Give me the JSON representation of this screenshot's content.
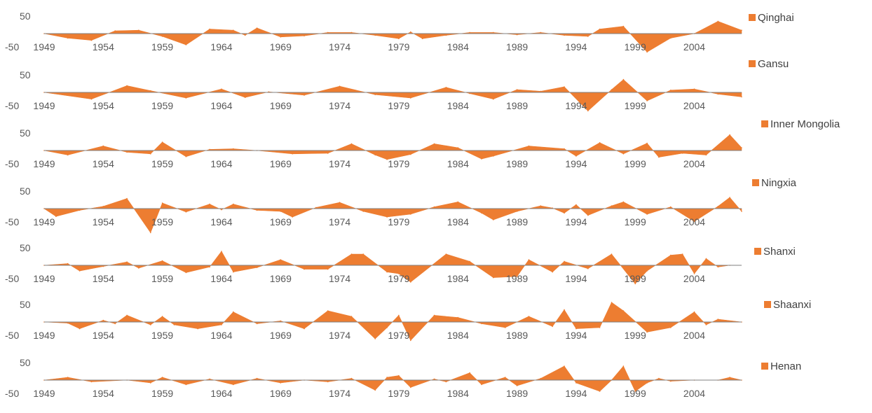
{
  "colors": {
    "series": "#ED7D31",
    "text": "#595959",
    "axis": "#7F7F7F"
  },
  "chart_data": {
    "type": "area",
    "ylim": [
      -50,
      50
    ],
    "yticks": [
      "50",
      "-50"
    ],
    "xticks": [
      "1949",
      "1954",
      "1959",
      "1964",
      "1969",
      "1974",
      "1979",
      "1984",
      "1989",
      "1994",
      "1999",
      "2004"
    ],
    "x_start": 1949,
    "x_end": 2008,
    "panels": [
      {
        "name": "Qinghai",
        "years": [
          1949,
          1951,
          1953,
          1955,
          1957,
          1959,
          1961,
          1963,
          1965,
          1966,
          1967,
          1969,
          1971,
          1973,
          1975,
          1977,
          1979,
          1980,
          1981,
          1983,
          1985,
          1987,
          1989,
          1991,
          1993,
          1995,
          1996,
          1998,
          2000,
          2002,
          2004,
          2006,
          2008
        ],
        "values": [
          0,
          -8,
          -12,
          5,
          6,
          -5,
          -20,
          8,
          6,
          -3,
          10,
          -6,
          -4,
          2,
          2,
          -3,
          -9,
          3,
          -9,
          -3,
          2,
          2,
          -2,
          2,
          -3,
          -5,
          8,
          13,
          -33,
          -8,
          0,
          22,
          6
        ]
      },
      {
        "name": "Gansu",
        "years": [
          1949,
          1953,
          1956,
          1958,
          1961,
          1964,
          1966,
          1968,
          1971,
          1974,
          1977,
          1980,
          1983,
          1985,
          1987,
          1989,
          1991,
          1993,
          1995,
          1997,
          1998,
          2000,
          2002,
          2004,
          2006,
          2008
        ],
        "values": [
          0,
          -12,
          12,
          3,
          -10,
          6,
          -9,
          1,
          -5,
          11,
          -4,
          -10,
          9,
          -2,
          -12,
          5,
          2,
          10,
          -33,
          5,
          23,
          -15,
          4,
          6,
          -3,
          -8
        ]
      },
      {
        "name": "Inner Mongolia",
        "years": [
          1949,
          1951,
          1954,
          1956,
          1958,
          1959,
          1961,
          1963,
          1965,
          1967,
          1970,
          1973,
          1975,
          1977,
          1978,
          1980,
          1982,
          1984,
          1986,
          1987,
          1990,
          1993,
          1994,
          1996,
          1998,
          2000,
          2001,
          2003,
          2005,
          2007,
          2008
        ],
        "values": [
          0,
          -8,
          8,
          -3,
          -6,
          15,
          -11,
          2,
          3,
          0,
          -6,
          -5,
          12,
          -8,
          -16,
          -7,
          12,
          5,
          -15,
          -10,
          8,
          3,
          -10,
          14,
          -6,
          13,
          -12,
          -5,
          -8,
          28,
          5
        ]
      },
      {
        "name": "Ningxia",
        "years": [
          1949,
          1950,
          1952,
          1954,
          1956,
          1958,
          1959,
          1961,
          1963,
          1964,
          1965,
          1967,
          1969,
          1970,
          1972,
          1974,
          1976,
          1978,
          1980,
          1982,
          1984,
          1986,
          1987,
          1989,
          1991,
          1992,
          1993,
          1994,
          1995,
          1997,
          1998,
          2000,
          2002,
          2004,
          2006,
          2007,
          2008
        ],
        "values": [
          0,
          -14,
          -3,
          4,
          18,
          -43,
          10,
          -6,
          8,
          -2,
          8,
          -3,
          -5,
          -15,
          2,
          11,
          -5,
          -15,
          -10,
          3,
          12,
          -8,
          -20,
          -5,
          5,
          1,
          -8,
          7,
          -12,
          5,
          12,
          -10,
          3,
          -23,
          4,
          20,
          -5
        ]
      },
      {
        "name": "Shanxi",
        "years": [
          1949,
          1951,
          1952,
          1954,
          1956,
          1957,
          1959,
          1961,
          1963,
          1964,
          1965,
          1967,
          1969,
          1971,
          1973,
          1975,
          1976,
          1978,
          1979,
          1980,
          1983,
          1985,
          1987,
          1989,
          1990,
          1992,
          1993,
          1995,
          1997,
          1999,
          2000,
          2002,
          2003,
          2004,
          2005,
          2006,
          2007
        ],
        "values": [
          0,
          3,
          -10,
          -2,
          6,
          -5,
          8,
          -13,
          -3,
          25,
          -12,
          -4,
          10,
          -7,
          -7,
          20,
          20,
          -12,
          -15,
          -30,
          20,
          7,
          -22,
          -20,
          10,
          -12,
          7,
          -6,
          20,
          -33,
          -10,
          18,
          20,
          -15,
          12,
          -3,
          0
        ]
      },
      {
        "name": "Shaanxi",
        "years": [
          1949,
          1951,
          1952,
          1954,
          1955,
          1956,
          1958,
          1959,
          1960,
          1962,
          1964,
          1965,
          1967,
          1969,
          1971,
          1973,
          1975,
          1977,
          1978,
          1979,
          1980,
          1982,
          1984,
          1986,
          1988,
          1990,
          1992,
          1993,
          1994,
          1996,
          1997,
          1998,
          2000,
          2002,
          2004,
          2005,
          2006,
          2008
        ],
        "values": [
          0,
          -2,
          -12,
          3,
          -3,
          12,
          -5,
          10,
          -5,
          -12,
          -5,
          18,
          -3,
          2,
          -12,
          20,
          10,
          -30,
          -10,
          12,
          -33,
          12,
          8,
          -3,
          -10,
          10,
          -8,
          22,
          -12,
          -10,
          35,
          20,
          -18,
          -10,
          18,
          -5,
          5,
          0
        ]
      },
      {
        "name": "Henan",
        "years": [
          1949,
          1951,
          1953,
          1956,
          1958,
          1959,
          1961,
          1963,
          1965,
          1967,
          1969,
          1971,
          1973,
          1975,
          1977,
          1978,
          1979,
          1980,
          1982,
          1983,
          1985,
          1986,
          1988,
          1989,
          1991,
          1993,
          1994,
          1996,
          1997,
          1998,
          1999,
          2000,
          2001,
          2002,
          2004,
          2006,
          2007,
          2008
        ],
        "values": [
          0,
          5,
          -3,
          0,
          -5,
          5,
          -8,
          2,
          -8,
          3,
          -5,
          0,
          -3,
          3,
          -18,
          5,
          8,
          -13,
          2,
          -3,
          13,
          -8,
          5,
          -10,
          3,
          25,
          -5,
          -20,
          0,
          25,
          -20,
          -5,
          3,
          -2,
          0,
          0,
          5,
          0
        ]
      }
    ]
  }
}
